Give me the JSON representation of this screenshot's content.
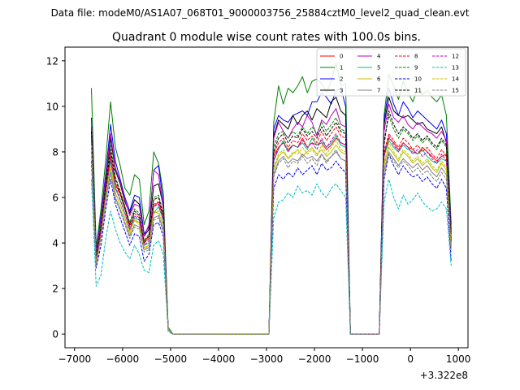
{
  "chart_data": {
    "type": "line",
    "suptitle": "Data file: modeM0/AS1A07_068T01_9000003756_25884cztM0_level2_quad_clean.evt",
    "title": "Quadrant 0 module wise count rates with 100.0s bins.",
    "xlabel": "",
    "ylabel": "",
    "x_offset_text": "+3.322e8",
    "xlim": [
      -7200,
      1200
    ],
    "ylim": [
      -0.6,
      12.6
    ],
    "xticks": [
      -7000,
      -6000,
      -5000,
      -4000,
      -3000,
      -2000,
      -1000,
      0,
      1000
    ],
    "xtick_labels": [
      "−7000",
      "−6000",
      "−5000",
      "−4000",
      "−3000",
      "−2000",
      "−1000",
      "0",
      "1000"
    ],
    "yticks": [
      0,
      2,
      4,
      6,
      8,
      10,
      12
    ],
    "ytick_labels": [
      "0",
      "2",
      "4",
      "6",
      "8",
      "10",
      "12"
    ],
    "legend_location": "top-right",
    "x": [
      -6650,
      -6550,
      -6450,
      -6350,
      -6250,
      -6150,
      -6050,
      -5950,
      -5850,
      -5750,
      -5650,
      -5550,
      -5450,
      -5350,
      -5250,
      -5150,
      -5050,
      -4950,
      -4850,
      -2950,
      -2850,
      -2750,
      -2650,
      -2550,
      -2450,
      -2350,
      -2250,
      -2150,
      -2050,
      -1950,
      -1850,
      -1750,
      -1650,
      -1550,
      -1450,
      -1350,
      -1250,
      -1150,
      -650,
      -550,
      -450,
      -350,
      -250,
      -150,
      -50,
      50,
      150,
      250,
      350,
      450,
      550,
      650,
      750,
      850
    ],
    "series": [
      {
        "name": "0",
        "color": "#ff0000",
        "dash": "solid",
        "values": [
          9.0,
          3.4,
          4.6,
          6.5,
          7.8,
          6.6,
          6.2,
          5.6,
          4.8,
          5.0,
          4.9,
          4.1,
          4.3,
          5.6,
          5.8,
          5.2,
          0.2,
          0.0,
          0.0,
          0.0,
          7.8,
          8.2,
          8.4,
          8.1,
          8.3,
          8.2,
          8.6,
          8.2,
          8.4,
          8.3,
          8.4,
          8.1,
          8.3,
          8.6,
          8.4,
          8.3,
          0.0,
          0.0,
          0.0,
          7.9,
          8.6,
          8.4,
          8.1,
          8.4,
          8.2,
          8.1,
          7.9,
          8.2,
          8.0,
          7.8,
          7.6,
          7.8,
          7.9,
          4.1
        ]
      },
      {
        "name": "1",
        "color": "#008000",
        "dash": "solid",
        "values": [
          10.8,
          3.8,
          5.5,
          7.7,
          10.2,
          8.2,
          7.4,
          6.4,
          6.1,
          7.0,
          6.8,
          4.8,
          5.4,
          8.0,
          7.5,
          6.2,
          0.3,
          0.0,
          0.0,
          0.0,
          9.3,
          10.9,
          10.1,
          10.8,
          10.6,
          10.9,
          11.3,
          10.6,
          11.1,
          11.2,
          11.0,
          10.6,
          11.1,
          11.9,
          10.9,
          11.0,
          0.0,
          0.0,
          0.0,
          9.6,
          11.4,
          10.9,
          10.3,
          11.1,
          10.6,
          10.2,
          10.8,
          10.5,
          10.7,
          10.4,
          10.2,
          10.5,
          9.6,
          4.8
        ]
      },
      {
        "name": "2",
        "color": "#0000ff",
        "dash": "solid",
        "values": [
          9.5,
          3.6,
          5.2,
          7.1,
          9.2,
          7.6,
          6.8,
          6.0,
          5.4,
          6.1,
          6.0,
          4.4,
          4.7,
          7.2,
          7.4,
          5.8,
          0.2,
          0.0,
          0.0,
          0.0,
          9.0,
          9.6,
          9.4,
          9.3,
          9.6,
          9.7,
          9.8,
          9.6,
          10.2,
          10.2,
          10.6,
          10.4,
          10.1,
          10.7,
          10.8,
          10.0,
          0.0,
          0.0,
          0.0,
          9.4,
          10.8,
          10.1,
          9.6,
          10.2,
          9.9,
          9.5,
          9.8,
          9.6,
          9.4,
          9.2,
          9.0,
          9.4,
          8.8,
          4.6
        ]
      },
      {
        "name": "3",
        "color": "#000000",
        "dash": "solid",
        "values": [
          9.1,
          3.5,
          4.9,
          6.6,
          8.6,
          7.2,
          6.6,
          5.8,
          5.3,
          5.9,
          5.7,
          4.3,
          4.6,
          6.5,
          6.6,
          5.6,
          0.2,
          0.0,
          0.0,
          0.0,
          8.7,
          9.4,
          9.2,
          9.0,
          9.6,
          9.2,
          9.6,
          9.8,
          9.4,
          9.9,
          9.7,
          9.5,
          10.2,
          10.4,
          9.8,
          9.6,
          0.0,
          0.0,
          0.0,
          9.2,
          10.4,
          9.8,
          9.6,
          9.5,
          9.6,
          9.4,
          9.2,
          9.3,
          9.0,
          8.9,
          8.8,
          9.1,
          8.4,
          4.5
        ]
      },
      {
        "name": "4",
        "color": "#bf00bf",
        "dash": "solid",
        "values": [
          9.3,
          3.6,
          5.0,
          6.9,
          8.8,
          7.3,
          6.7,
          5.9,
          5.2,
          5.7,
          5.6,
          4.3,
          4.8,
          7.2,
          7.0,
          5.5,
          0.2,
          0.0,
          0.0,
          0.0,
          8.6,
          9.3,
          8.9,
          8.6,
          9.0,
          9.3,
          9.1,
          9.6,
          9.3,
          8.7,
          9.4,
          9.2,
          9.6,
          9.9,
          9.2,
          9.1,
          0.0,
          0.0,
          0.0,
          8.9,
          10.1,
          9.5,
          9.3,
          9.6,
          9.2,
          9.0,
          9.3,
          9.1,
          8.9,
          8.8,
          8.6,
          8.9,
          8.5,
          4.4
        ]
      },
      {
        "name": "5",
        "color": "#00bf80",
        "dash": "solid",
        "values": [
          8.6,
          3.3,
          4.5,
          6.3,
          7.6,
          6.4,
          5.9,
          5.3,
          4.6,
          5.1,
          5.0,
          3.9,
          4.0,
          5.3,
          5.6,
          5.0,
          0.2,
          0.0,
          0.0,
          0.0,
          7.6,
          8.1,
          8.5,
          8.0,
          8.3,
          8.2,
          8.4,
          8.1,
          8.6,
          8.3,
          8.5,
          8.2,
          8.4,
          8.7,
          8.3,
          8.2,
          0.0,
          0.0,
          0.0,
          7.8,
          8.5,
          8.2,
          8.0,
          8.3,
          8.1,
          8.0,
          7.9,
          8.1,
          7.8,
          7.6,
          7.5,
          7.7,
          7.6,
          4.0
        ]
      },
      {
        "name": "6",
        "color": "#bfbf00",
        "dash": "solid",
        "values": [
          8.4,
          3.2,
          4.4,
          6.0,
          7.3,
          6.2,
          5.7,
          5.1,
          4.5,
          5.0,
          4.9,
          3.8,
          3.9,
          5.4,
          5.3,
          4.8,
          0.2,
          0.0,
          0.0,
          0.0,
          7.2,
          7.8,
          8.0,
          7.7,
          7.9,
          8.1,
          7.8,
          8.0,
          8.2,
          7.9,
          8.1,
          7.8,
          8.0,
          8.3,
          8.0,
          7.9,
          0.0,
          0.0,
          0.0,
          7.4,
          8.2,
          7.9,
          7.6,
          8.0,
          7.8,
          7.5,
          7.7,
          7.4,
          7.6,
          7.3,
          7.1,
          7.5,
          7.2,
          3.9
        ]
      },
      {
        "name": "7",
        "color": "#808080",
        "dash": "solid",
        "values": [
          8.2,
          3.1,
          4.3,
          5.9,
          7.1,
          6.0,
          5.5,
          4.9,
          4.3,
          4.8,
          4.7,
          3.7,
          3.8,
          5.1,
          5.2,
          4.6,
          0.2,
          0.0,
          0.0,
          0.0,
          7.0,
          7.6,
          7.8,
          7.5,
          7.7,
          7.6,
          7.9,
          7.7,
          7.8,
          7.6,
          7.9,
          7.6,
          7.8,
          8.0,
          7.7,
          7.6,
          0.0,
          0.0,
          0.0,
          7.2,
          8.0,
          7.7,
          7.4,
          7.7,
          7.5,
          7.3,
          7.5,
          7.2,
          7.4,
          7.1,
          6.9,
          7.3,
          7.0,
          3.8
        ]
      },
      {
        "name": "8",
        "color": "#ff0000",
        "dash": "dashed",
        "values": [
          8.8,
          3.3,
          4.6,
          6.4,
          7.9,
          6.6,
          6.1,
          5.5,
          4.7,
          5.3,
          5.1,
          4.0,
          4.2,
          5.7,
          5.8,
          5.1,
          0.2,
          0.0,
          0.0,
          0.0,
          7.9,
          8.4,
          8.6,
          8.2,
          8.5,
          8.4,
          8.8,
          8.5,
          8.7,
          8.4,
          8.9,
          8.5,
          8.8,
          9.1,
          8.7,
          8.6,
          0.0,
          0.0,
          0.0,
          8.0,
          8.8,
          8.5,
          8.2,
          8.6,
          8.4,
          8.1,
          8.3,
          8.0,
          8.2,
          7.9,
          7.7,
          8.1,
          7.8,
          4.0
        ]
      },
      {
        "name": "9",
        "color": "#008000",
        "dash": "dashed",
        "values": [
          9.0,
          3.4,
          4.8,
          6.7,
          8.3,
          6.9,
          6.3,
          5.6,
          4.9,
          5.5,
          5.3,
          4.1,
          4.4,
          6.0,
          6.1,
          5.3,
          0.2,
          0.0,
          0.0,
          0.0,
          8.2,
          8.8,
          8.9,
          8.6,
          8.9,
          8.7,
          9.1,
          8.8,
          9.1,
          8.8,
          9.3,
          8.9,
          9.2,
          9.5,
          9.0,
          8.9,
          0.0,
          0.0,
          0.0,
          8.5,
          9.6,
          9.0,
          8.6,
          9.0,
          8.8,
          8.5,
          8.7,
          8.4,
          8.6,
          8.3,
          8.1,
          8.5,
          8.2,
          4.2
        ]
      },
      {
        "name": "10",
        "color": "#0000ff",
        "dash": "dashed",
        "values": [
          7.6,
          2.9,
          3.9,
          5.5,
          6.8,
          5.7,
          5.1,
          4.5,
          3.9,
          4.4,
          4.3,
          3.2,
          3.5,
          4.8,
          4.9,
          4.3,
          0.2,
          0.0,
          0.0,
          0.0,
          6.4,
          7.0,
          6.8,
          7.1,
          6.9,
          7.3,
          7.0,
          7.2,
          7.4,
          7.0,
          7.5,
          7.2,
          7.3,
          7.6,
          7.3,
          7.1,
          0.0,
          0.0,
          0.0,
          6.8,
          7.9,
          7.4,
          7.0,
          7.4,
          7.1,
          6.9,
          7.0,
          6.7,
          6.9,
          6.6,
          6.4,
          6.8,
          6.4,
          3.2
        ]
      },
      {
        "name": "11",
        "color": "#000000",
        "dash": "dashed",
        "values": [
          8.9,
          3.4,
          4.7,
          6.5,
          8.1,
          6.8,
          6.2,
          5.5,
          4.8,
          5.4,
          5.2,
          4.0,
          4.3,
          5.9,
          6.0,
          5.2,
          0.2,
          0.0,
          0.0,
          0.0,
          8.0,
          8.6,
          8.8,
          8.4,
          8.7,
          8.6,
          9.0,
          8.7,
          8.9,
          8.6,
          9.1,
          8.7,
          9.0,
          9.3,
          8.9,
          8.8,
          0.0,
          0.0,
          0.0,
          8.3,
          9.8,
          9.2,
          8.8,
          9.1,
          8.9,
          8.6,
          8.8,
          8.5,
          8.7,
          8.4,
          8.2,
          8.6,
          8.3,
          4.1
        ]
      },
      {
        "name": "12",
        "color": "#bf00bf",
        "dash": "dashed",
        "values": [
          8.5,
          3.2,
          4.5,
          6.2,
          7.7,
          6.5,
          5.9,
          5.3,
          4.6,
          5.2,
          5.0,
          3.9,
          4.1,
          5.6,
          5.7,
          5.0,
          0.2,
          0.0,
          0.0,
          0.0,
          7.6,
          8.2,
          8.4,
          8.0,
          8.3,
          8.2,
          8.5,
          8.2,
          8.4,
          8.1,
          8.6,
          8.2,
          8.5,
          8.8,
          8.4,
          8.3,
          0.0,
          0.0,
          0.0,
          7.8,
          8.7,
          8.3,
          8.0,
          8.4,
          8.2,
          7.9,
          8.1,
          7.8,
          8.0,
          7.7,
          7.5,
          7.9,
          7.6,
          3.9
        ]
      },
      {
        "name": "13",
        "color": "#00bfbf",
        "dash": "dashed",
        "values": [
          6.8,
          2.1,
          2.6,
          4.2,
          5.4,
          4.6,
          4.0,
          3.6,
          3.3,
          3.9,
          3.5,
          2.8,
          2.7,
          3.9,
          4.1,
          3.5,
          0.1,
          0.0,
          0.0,
          0.0,
          5.1,
          5.8,
          5.9,
          6.2,
          6.0,
          6.5,
          6.2,
          6.3,
          6.1,
          6.6,
          6.2,
          6.0,
          6.4,
          6.6,
          6.3,
          6.0,
          0.0,
          0.0,
          0.0,
          5.8,
          6.8,
          6.0,
          5.5,
          6.1,
          5.7,
          5.9,
          6.2,
          5.8,
          5.6,
          5.4,
          5.5,
          5.8,
          5.5,
          3.0
        ]
      },
      {
        "name": "14",
        "color": "#bfbf00",
        "dash": "dashed",
        "values": [
          8.3,
          3.1,
          4.3,
          6.0,
          7.4,
          6.2,
          5.7,
          5.1,
          4.4,
          5.0,
          4.8,
          3.7,
          3.9,
          5.3,
          5.4,
          4.8,
          0.2,
          0.0,
          0.0,
          0.0,
          7.3,
          7.9,
          8.1,
          7.7,
          8.0,
          7.9,
          8.2,
          7.9,
          8.1,
          7.8,
          8.3,
          7.9,
          8.2,
          8.5,
          8.1,
          8.0,
          0.0,
          0.0,
          0.0,
          7.5,
          8.4,
          8.0,
          7.7,
          8.1,
          7.9,
          7.6,
          7.8,
          7.5,
          7.7,
          7.4,
          7.2,
          7.6,
          7.3,
          3.8
        ]
      },
      {
        "name": "15",
        "color": "#808080",
        "dash": "dashed",
        "values": [
          8.0,
          3.0,
          4.2,
          5.8,
          7.1,
          5.9,
          5.4,
          4.8,
          4.2,
          4.7,
          4.6,
          3.6,
          3.7,
          5.0,
          5.1,
          4.5,
          0.2,
          0.0,
          0.0,
          0.0,
          6.9,
          7.5,
          7.7,
          7.3,
          7.6,
          7.5,
          7.8,
          7.5,
          7.7,
          7.4,
          7.9,
          7.5,
          7.8,
          8.1,
          7.7,
          7.6,
          0.0,
          0.0,
          0.0,
          7.1,
          7.9,
          7.6,
          7.3,
          7.6,
          7.4,
          7.1,
          7.3,
          7.0,
          7.2,
          6.9,
          6.7,
          7.1,
          6.8,
          3.6
        ]
      }
    ]
  }
}
